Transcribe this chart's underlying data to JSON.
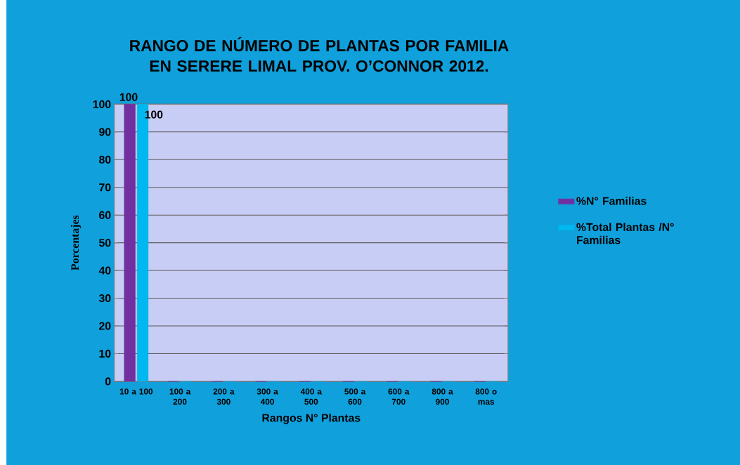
{
  "chart_data": {
    "type": "bar",
    "title": "RANGO DE NÚMERO DE  PLANTAS POR FAMILIA EN SERERE LIMAL PROV. O’CONNOR 2012.",
    "xlabel": "Rangos N° Plantas",
    "ylabel": "Porcentajes",
    "categories": [
      "10 a 100",
      "100 a 200",
      "200 a 300",
      "300 a 400",
      "400 a 500",
      "500 a 600",
      "600 a 700",
      "800 a 900",
      "800 o mas"
    ],
    "series": [
      {
        "name": "%N° Familias",
        "color": "#7030a0",
        "values": [
          100,
          0,
          0,
          0,
          0,
          0,
          0,
          0,
          0
        ],
        "value_labels": [
          "100",
          null,
          null,
          null,
          null,
          null,
          null,
          null,
          null
        ]
      },
      {
        "name": "%Total Plantas /N° Familias",
        "color": "#00b8f0",
        "values": [
          100,
          0,
          0,
          0,
          0,
          0,
          0,
          0,
          0
        ],
        "value_labels": [
          "100",
          null,
          null,
          null,
          null,
          null,
          null,
          null,
          null
        ]
      }
    ],
    "ylim": [
      0,
      100
    ],
    "yticks": [
      0,
      10,
      20,
      30,
      40,
      50,
      60,
      70,
      80,
      90,
      100
    ],
    "grid": "y",
    "legend": "right"
  }
}
